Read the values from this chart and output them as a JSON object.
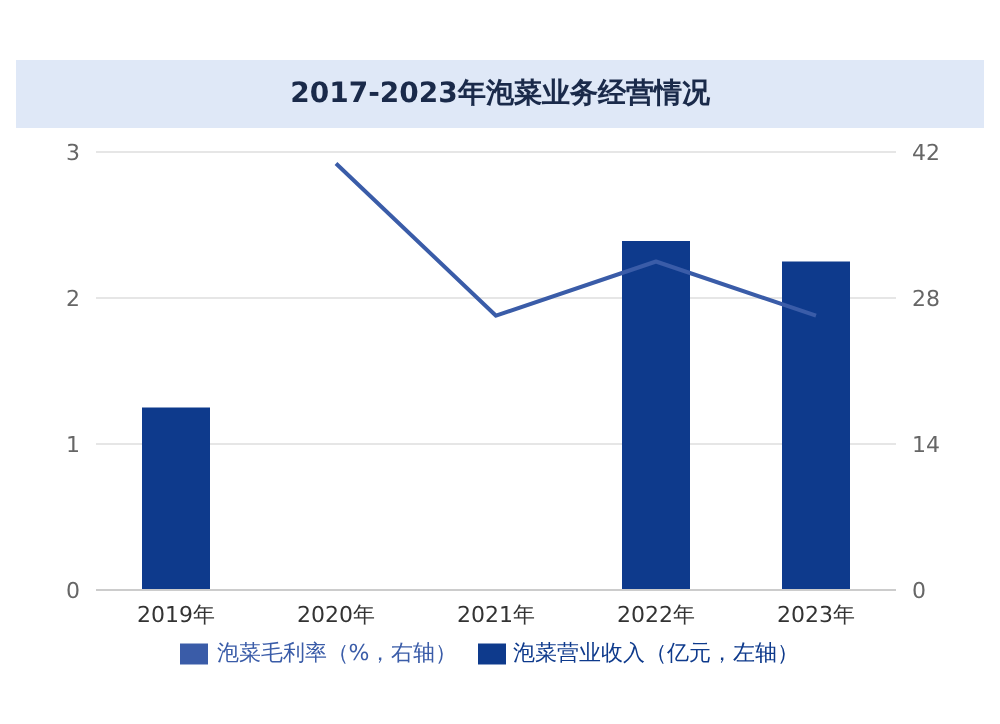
{
  "chart_data": {
    "type": "bar",
    "title": "2017-2023年泡菜业务经营情况",
    "categories": [
      "2019年",
      "2020年",
      "2021年",
      "2022年",
      "2023年"
    ],
    "series": [
      {
        "name": "泡菜营业收入（亿元，左轴）",
        "color": "#0e3a8c",
        "values": [
          1.25,
          null,
          null,
          2.39,
          2.25
        ]
      },
      {
        "name": "泡菜毛利率（%，右轴）",
        "type": "line",
        "axis": "y2",
        "color": "#3a5ca8",
        "values": [
          null,
          40.9,
          26.3,
          31.5,
          26.3
        ]
      }
    ],
    "ylim": [
      0,
      3
    ],
    "yticks": [
      0,
      1,
      2,
      3
    ],
    "y2lim": [
      0,
      42
    ],
    "y2ticks": [
      0,
      14,
      28,
      42
    ],
    "grid": "y",
    "legend": "bottom",
    "marker": "none"
  }
}
